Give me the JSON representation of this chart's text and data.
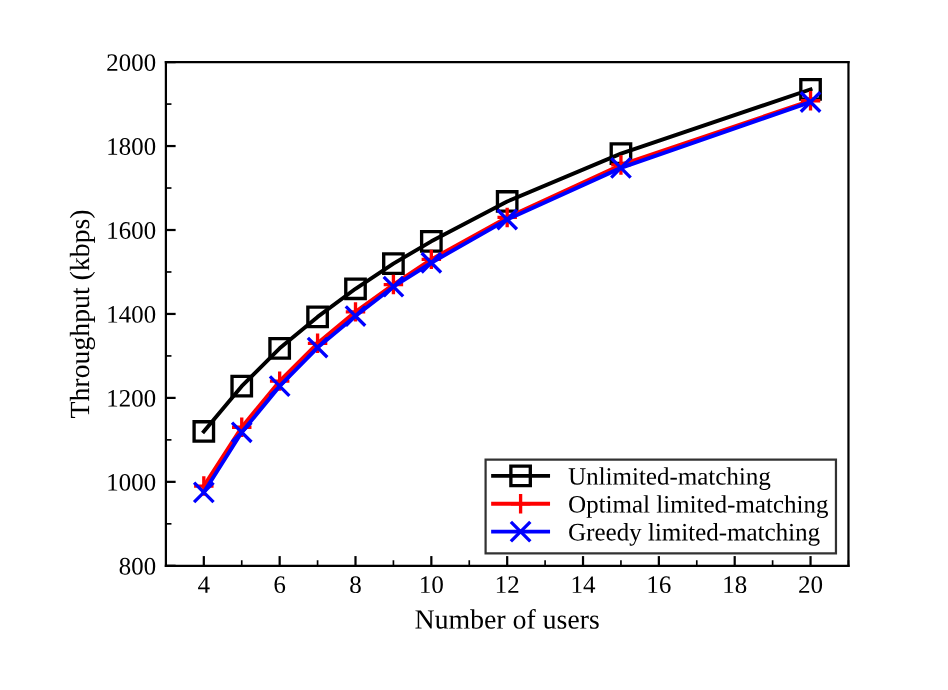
{
  "chart_data": {
    "type": "line",
    "xlabel": "Number of users",
    "ylabel": "Throughput (kbps)",
    "x": [
      4,
      5,
      6,
      7,
      8,
      9,
      10,
      12,
      15,
      20
    ],
    "series": [
      {
        "name": "Unlimited-matching",
        "color": "#000000",
        "marker": "square",
        "values": [
          1120,
          1228,
          1318,
          1393,
          1460,
          1520,
          1573,
          1668,
          1782,
          1935
        ]
      },
      {
        "name": "Optimal limited-matching",
        "color": "#ff0000",
        "marker": "plus",
        "values": [
          990,
          1130,
          1240,
          1330,
          1405,
          1470,
          1530,
          1630,
          1755,
          1908
        ]
      },
      {
        "name": "Greedy limited-matching",
        "color": "#0000ff",
        "marker": "cross",
        "values": [
          975,
          1118,
          1228,
          1320,
          1395,
          1465,
          1522,
          1625,
          1748,
          1905
        ]
      }
    ],
    "xlim": [
      3,
      21
    ],
    "xticks": [
      4,
      6,
      8,
      10,
      12,
      14,
      16,
      18,
      20
    ],
    "ylim": [
      800,
      2000
    ],
    "yticks": [
      800,
      1000,
      1200,
      1400,
      1600,
      1800,
      2000
    ],
    "grid": false,
    "legend": "bottom right",
    "line_style": "solid"
  }
}
